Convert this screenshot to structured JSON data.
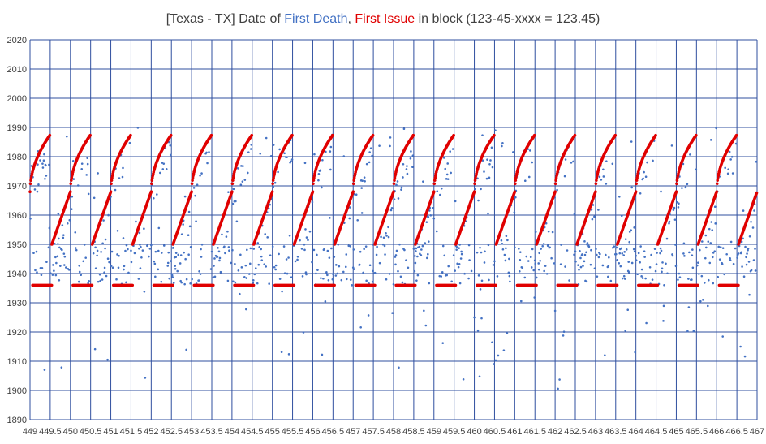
{
  "chart_data": {
    "type": "scatter",
    "title": {
      "prefix": "[Texas - TX] Date of ",
      "first_death": "First Death",
      "separator": ", ",
      "first_issue": "First Issue",
      "suffix": " in block (123-45-xxxx = 123.45)"
    },
    "colors": {
      "first_death": "#4472C4",
      "first_issue": "#E00000",
      "grid": "#2F4F9F",
      "axis_text": "#404040",
      "title_text": "#404040"
    },
    "xlim": [
      449,
      467
    ],
    "ylim": [
      1890,
      2020
    ],
    "x_ticks": [
      "449",
      "449.5",
      "450",
      "450.5",
      "451",
      "451.5",
      "452",
      "452.5",
      "453",
      "453.5",
      "454",
      "454.5",
      "455",
      "455.5",
      "456",
      "456.5",
      "457",
      "457.5",
      "458",
      "458.5",
      "459",
      "459.5",
      "460",
      "460.5",
      "461",
      "461.5",
      "462",
      "462.5",
      "463",
      "463.5",
      "464",
      "464.5",
      "465",
      "465.5",
      "466",
      "466.5",
      "467"
    ],
    "y_ticks": [
      "1890",
      "1900",
      "1910",
      "1920",
      "1930",
      "1940",
      "1950",
      "1960",
      "1970",
      "1980",
      "1990",
      "2000",
      "2010",
      "2020"
    ],
    "grid": true,
    "series": [
      {
        "name": "First Death"
      },
      {
        "name": "First Issue"
      }
    ],
    "first_issue_pattern": {
      "baseline_year": 1936,
      "baseline_blocks_per_group": "x.06 to x.54",
      "ramp_a": {
        "from_block_offset": 0.0,
        "to_block_offset": 0.5,
        "year_start": 1968,
        "year_end": 1987.5
      },
      "ramp_b": {
        "from_block_offset": 0.54,
        "to_block_offset": 1.0,
        "year_start": 1950,
        "year_end": 1968
      }
    }
  }
}
